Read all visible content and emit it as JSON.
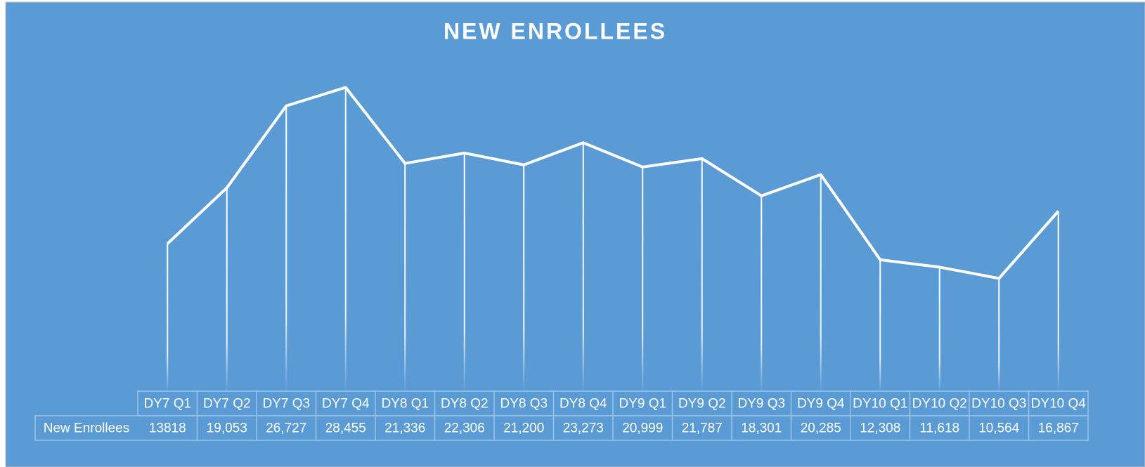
{
  "chart_data": {
    "type": "line",
    "title": "NEW ENROLLEES",
    "categories": [
      "DY7 Q1",
      "DY7 Q2",
      "DY7 Q3",
      "DY7 Q4",
      "DY8 Q1",
      "DY8 Q2",
      "DY8 Q3",
      "DY8 Q4",
      "DY9 Q1",
      "DY9 Q2",
      "DY9 Q3",
      "DY9 Q4",
      "DY10 Q1",
      "DY10 Q2",
      "DY10 Q3",
      "DY10 Q4"
    ],
    "series": [
      {
        "name": "New Enrollees",
        "color": "#ffffff",
        "values": [
          13818,
          19053,
          26727,
          28455,
          21336,
          22306,
          21200,
          23273,
          20999,
          21787,
          18301,
          20285,
          12308,
          11618,
          10564,
          16867
        ],
        "value_labels": [
          "13818",
          "19,053",
          "26,727",
          "28,455",
          "21,336",
          "22,306",
          "21,200",
          "23,273",
          "20,999",
          "21,787",
          "18,301",
          "20,285",
          "12,308",
          "11,618",
          "10,564",
          "16,867"
        ]
      }
    ],
    "ylim": [
      0,
      30000
    ],
    "drop_lines": true
  }
}
